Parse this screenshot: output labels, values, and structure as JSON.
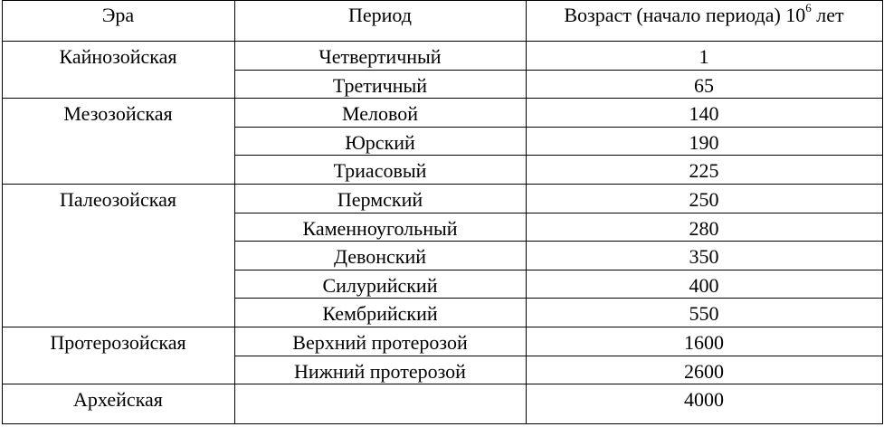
{
  "headers": {
    "era": "Эра",
    "period": "Период",
    "age_prefix": "Возраст (начало периода) 10",
    "age_sup": "6",
    "age_suffix": " лет"
  },
  "rows": [
    {
      "era": "Кайнозойская",
      "period": "Четвертичный",
      "age": "1"
    },
    {
      "era": "",
      "period": "Третичный",
      "age": "65"
    },
    {
      "era": "Мезозойская",
      "period": "Меловой",
      "age": "140"
    },
    {
      "era": "",
      "period": "Юрский",
      "age": "190"
    },
    {
      "era": "",
      "period": "Триасовый",
      "age": "225"
    },
    {
      "era": "Палеозойская",
      "period": "Пермский",
      "age": "250"
    },
    {
      "era": "",
      "period": "Каменноугольный",
      "age": "280"
    },
    {
      "era": "",
      "period": "Девонский",
      "age": "350"
    },
    {
      "era": "",
      "period": "Силурийский",
      "age": "400"
    },
    {
      "era": "",
      "period": "Кембрийский",
      "age": "550"
    },
    {
      "era": "Протерозойская",
      "period": "Верхний протерозой",
      "age": "1600"
    },
    {
      "era": "",
      "period": "Нижний протерозой",
      "age": "2600"
    },
    {
      "era": "Архейская",
      "period": "",
      "age": "4000"
    }
  ]
}
